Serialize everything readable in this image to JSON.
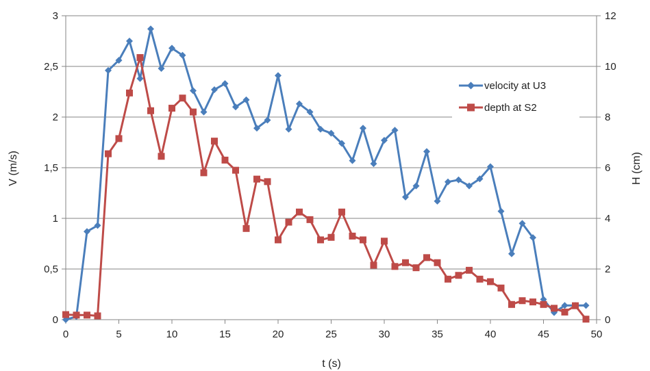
{
  "chart_data": {
    "type": "line",
    "xlabel": "t (s)",
    "ylabel": "V (m/s)",
    "y2label": "H (cm)",
    "xlim": [
      0,
      50
    ],
    "ylim": [
      0,
      3
    ],
    "y2lim": [
      0,
      12
    ],
    "xticks": [
      "0",
      "5",
      "10",
      "15",
      "20",
      "25",
      "30",
      "35",
      "40",
      "45",
      "50"
    ],
    "yticks": [
      "0",
      "0,5",
      "1",
      "1,5",
      "2",
      "2,5",
      "3"
    ],
    "y2ticks": [
      "0",
      "2",
      "4",
      "6",
      "8",
      "10",
      "12"
    ],
    "grid": "horizontal",
    "legend_position": "right",
    "series": [
      {
        "name": "velocity at U3",
        "axis": "left",
        "color": "#4a7ebb",
        "marker": "diamond",
        "x": [
          0,
          1,
          2,
          3,
          4,
          5,
          6,
          7,
          8,
          9,
          10,
          11,
          12,
          13,
          14,
          15,
          16,
          17,
          18,
          19,
          20,
          21,
          22,
          23,
          24,
          25,
          26,
          27,
          28,
          29,
          30,
          31,
          32,
          33,
          34,
          35,
          36,
          37,
          38,
          39,
          40,
          41,
          42,
          43,
          44,
          45,
          46,
          47,
          48,
          49
        ],
        "y": [
          0,
          0.03,
          0.87,
          0.93,
          2.46,
          2.56,
          2.75,
          2.38,
          2.87,
          2.48,
          2.68,
          2.61,
          2.26,
          2.05,
          2.27,
          2.33,
          2.1,
          2.17,
          1.89,
          1.97,
          2.41,
          1.88,
          2.13,
          2.05,
          1.88,
          1.84,
          1.74,
          1.57,
          1.89,
          1.54,
          1.77,
          1.87,
          1.21,
          1.32,
          1.66,
          1.17,
          1.36,
          1.38,
          1.32,
          1.39,
          1.51,
          1.07,
          0.65,
          0.95,
          0.81,
          0.2,
          0.07,
          0.14,
          0.14,
          0.14
        ]
      },
      {
        "name": "depth at S2",
        "axis": "right",
        "color": "#be4b48",
        "marker": "square",
        "x": [
          0,
          1,
          2,
          3,
          4,
          5,
          6,
          7,
          8,
          9,
          10,
          11,
          12,
          13,
          14,
          15,
          16,
          17,
          18,
          19,
          20,
          21,
          22,
          23,
          24,
          25,
          26,
          27,
          28,
          29,
          30,
          31,
          32,
          33,
          34,
          35,
          36,
          37,
          38,
          39,
          40,
          41,
          42,
          43,
          44,
          45,
          46,
          47,
          48,
          49
        ],
        "y": [
          0.2,
          0.18,
          0.18,
          0.15,
          6.55,
          7.15,
          8.95,
          10.35,
          8.25,
          6.45,
          8.35,
          8.75,
          8.2,
          5.8,
          7.05,
          6.3,
          5.9,
          3.6,
          5.55,
          5.45,
          3.15,
          3.85,
          4.25,
          3.95,
          3.15,
          3.25,
          4.25,
          3.3,
          3.15,
          2.15,
          3.1,
          2.1,
          2.25,
          2.05,
          2.45,
          2.25,
          1.6,
          1.75,
          1.95,
          1.6,
          1.5,
          1.25,
          0.6,
          0.75,
          0.7,
          0.6,
          0.45,
          0.3,
          0.55,
          0.02
        ]
      }
    ]
  }
}
